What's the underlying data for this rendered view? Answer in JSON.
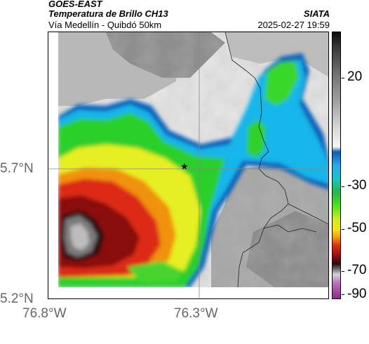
{
  "header": {
    "title": "GOES-EAST",
    "subtitle": "Temperatura de Brillo CH13",
    "location": "Vía Medellín - Quibdó 50km",
    "organization": "SIATA",
    "datetime": "2025-02-27 19:59"
  },
  "axes": {
    "lat_labels": [
      "5.7°N",
      "5.2°N"
    ],
    "lon_labels": [
      "76.8°W",
      "76.3°W"
    ]
  },
  "colorbar": {
    "labels": [
      "20",
      "-30",
      "-50",
      "-70",
      "-90"
    ]
  },
  "colors": {
    "cold_core": "#7a7a7a",
    "deep_red": "#8c0c0c",
    "red": "#e02a12",
    "orange": "#f2920f",
    "yellow": "#f0ee1d",
    "green": "#26d921",
    "cyan": "#12c5e6",
    "blue": "#0a57b3",
    "clear_sky": "#e7e7e7"
  },
  "icons": {
    "marker": "star-icon"
  }
}
